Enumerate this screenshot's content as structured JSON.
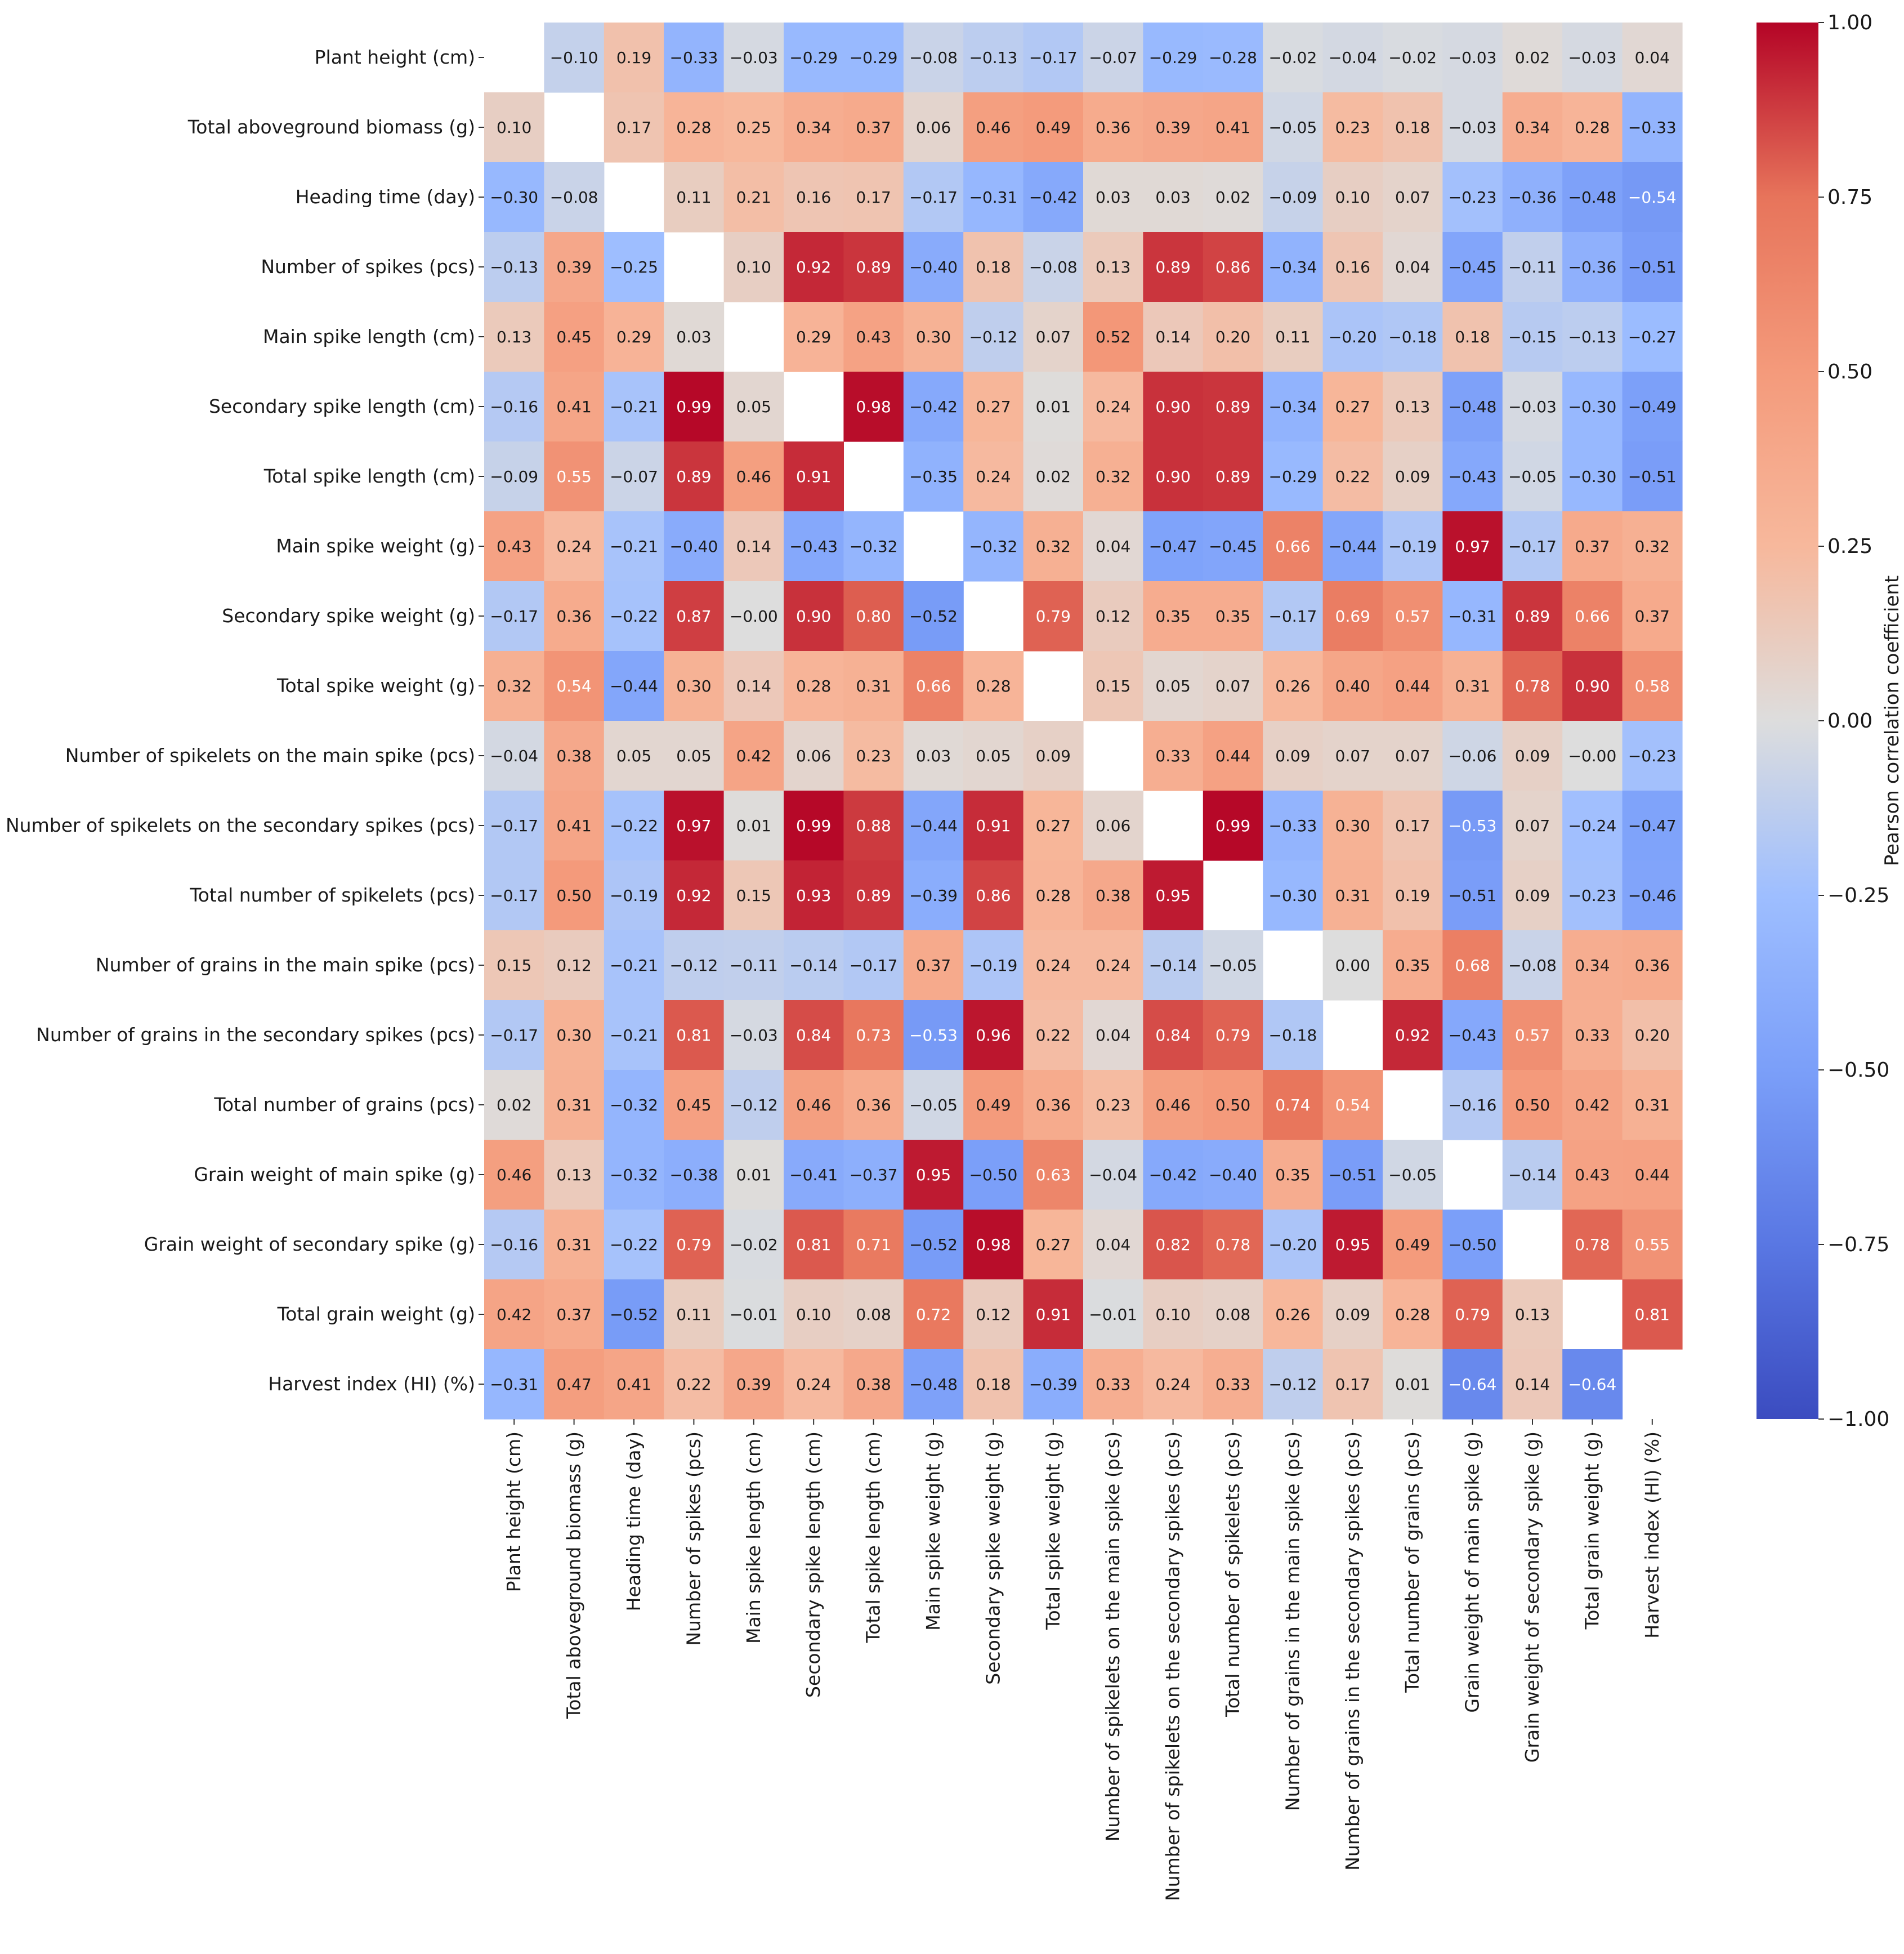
{
  "chart_data": {
    "type": "heatmap",
    "title": "",
    "colorbar": {
      "label": "Pearson correlation coefficient",
      "range": [
        -1.0,
        1.0
      ],
      "ticks": [
        "−1.00",
        "−0.75",
        "−0.50",
        "−0.25",
        "0.00",
        "0.25",
        "0.50",
        "0.75",
        "1.00"
      ],
      "tick_values": [
        -1.0,
        -0.75,
        -0.5,
        -0.25,
        0.0,
        0.25,
        0.5,
        0.75,
        1.0
      ],
      "colormap": "coolwarm",
      "colors": {
        "low": "#3b4cc0",
        "mid": "#dddddd",
        "high": "#b40426"
      }
    },
    "diagonal": "blank",
    "variables": [
      "Plant height (cm)",
      "Total aboveground biomass (g)",
      "Heading time (day)",
      "Number of spikes (pcs)",
      "Main spike length (cm)",
      "Secondary spike length (cm)",
      "Total spike length (cm)",
      "Main spike weight (g)",
      "Secondary spike weight (g)",
      "Total spike weight (g)",
      "Number of spikelets on the main spike (pcs)",
      "Number of spikelets on the secondary spikes (pcs)",
      "Total number of spikelets (pcs)",
      "Number of grains in the main spike (pcs)",
      "Number of grains in the secondary spikes (pcs)",
      "Total number of grains (pcs)",
      "Grain weight of main spike (g)",
      "Grain weight of secondary spike (g)",
      "Total grain weight (g)",
      "Harvest index (HI) (%)"
    ],
    "matrix": [
      [
        null,
        -0.1,
        0.19,
        -0.33,
        -0.03,
        -0.29,
        -0.29,
        -0.08,
        -0.13,
        -0.17,
        -0.07,
        -0.29,
        -0.28,
        -0.02,
        -0.04,
        -0.02,
        -0.03,
        0.02,
        -0.03,
        0.04
      ],
      [
        0.1,
        null,
        0.17,
        0.28,
        0.25,
        0.34,
        0.37,
        0.06,
        0.46,
        0.49,
        0.36,
        0.39,
        0.41,
        -0.05,
        0.23,
        0.18,
        -0.03,
        0.34,
        0.28,
        -0.33
      ],
      [
        -0.3,
        -0.08,
        null,
        0.11,
        0.21,
        0.16,
        0.17,
        -0.17,
        -0.31,
        -0.42,
        0.03,
        0.03,
        0.02,
        -0.09,
        0.1,
        0.07,
        -0.23,
        -0.36,
        -0.48,
        -0.54
      ],
      [
        -0.13,
        0.39,
        -0.25,
        null,
        0.1,
        0.92,
        0.89,
        -0.4,
        0.18,
        -0.08,
        0.13,
        0.89,
        0.86,
        -0.34,
        0.16,
        0.04,
        -0.45,
        -0.11,
        -0.36,
        -0.51
      ],
      [
        0.13,
        0.45,
        0.29,
        0.03,
        null,
        0.29,
        0.43,
        0.3,
        -0.12,
        0.07,
        0.52,
        0.14,
        0.2,
        0.11,
        -0.2,
        -0.18,
        0.18,
        -0.15,
        -0.13,
        -0.27
      ],
      [
        -0.16,
        0.41,
        -0.21,
        0.99,
        0.05,
        null,
        0.98,
        -0.42,
        0.27,
        0.01,
        0.24,
        0.9,
        0.89,
        -0.34,
        0.27,
        0.13,
        -0.48,
        -0.03,
        -0.3,
        -0.49
      ],
      [
        -0.09,
        0.55,
        -0.07,
        0.89,
        0.46,
        0.91,
        null,
        -0.35,
        0.24,
        0.02,
        0.32,
        0.9,
        0.89,
        -0.29,
        0.22,
        0.09,
        -0.43,
        -0.05,
        -0.3,
        -0.51
      ],
      [
        0.43,
        0.24,
        -0.21,
        -0.4,
        0.14,
        -0.43,
        -0.32,
        null,
        -0.32,
        0.32,
        0.04,
        -0.47,
        -0.45,
        0.66,
        -0.44,
        -0.19,
        0.97,
        -0.17,
        0.37,
        0.32
      ],
      [
        -0.17,
        0.36,
        -0.22,
        0.87,
        -0.0,
        0.9,
        0.8,
        -0.52,
        null,
        0.79,
        0.12,
        0.35,
        0.35,
        -0.17,
        0.69,
        0.57,
        -0.31,
        0.89,
        0.66,
        0.37
      ],
      [
        0.32,
        0.54,
        -0.44,
        0.3,
        0.14,
        0.28,
        0.31,
        0.66,
        0.28,
        null,
        0.15,
        0.05,
        0.07,
        0.26,
        0.4,
        0.44,
        0.31,
        0.78,
        0.9,
        0.58
      ],
      [
        -0.04,
        0.38,
        0.05,
        0.05,
        0.42,
        0.06,
        0.23,
        0.03,
        0.05,
        0.09,
        null,
        0.33,
        0.44,
        0.09,
        0.07,
        0.07,
        -0.06,
        0.09,
        -0.0,
        -0.23
      ],
      [
        -0.17,
        0.41,
        -0.22,
        0.97,
        0.01,
        0.99,
        0.88,
        -0.44,
        0.91,
        0.27,
        0.06,
        null,
        0.99,
        -0.33,
        0.3,
        0.17,
        -0.53,
        0.07,
        -0.24,
        -0.47
      ],
      [
        -0.17,
        0.5,
        -0.19,
        0.92,
        0.15,
        0.93,
        0.89,
        -0.39,
        0.86,
        0.28,
        0.38,
        0.95,
        null,
        -0.3,
        0.31,
        0.19,
        -0.51,
        0.09,
        -0.23,
        -0.46
      ],
      [
        0.15,
        0.12,
        -0.21,
        -0.12,
        -0.11,
        -0.14,
        -0.17,
        0.37,
        -0.19,
        0.24,
        0.24,
        -0.14,
        -0.05,
        null,
        0.0,
        0.35,
        0.68,
        -0.08,
        0.34,
        0.36
      ],
      [
        -0.17,
        0.3,
        -0.21,
        0.81,
        -0.03,
        0.84,
        0.73,
        -0.53,
        0.96,
        0.22,
        0.04,
        0.84,
        0.79,
        -0.18,
        null,
        0.92,
        -0.43,
        0.57,
        0.33,
        0.2
      ],
      [
        0.02,
        0.31,
        -0.32,
        0.45,
        -0.12,
        0.46,
        0.36,
        -0.05,
        0.49,
        0.36,
        0.23,
        0.46,
        0.5,
        0.74,
        0.54,
        null,
        -0.16,
        0.5,
        0.42,
        0.31
      ],
      [
        0.46,
        0.13,
        -0.32,
        -0.38,
        0.01,
        -0.41,
        -0.37,
        0.95,
        -0.5,
        0.63,
        -0.04,
        -0.42,
        -0.4,
        0.35,
        -0.51,
        -0.05,
        null,
        -0.14,
        0.43,
        0.44
      ],
      [
        -0.16,
        0.31,
        -0.22,
        0.79,
        -0.02,
        0.81,
        0.71,
        -0.52,
        0.98,
        0.27,
        0.04,
        0.82,
        0.78,
        -0.2,
        0.95,
        0.49,
        -0.5,
        null,
        0.78,
        0.55
      ],
      [
        0.42,
        0.37,
        -0.52,
        0.11,
        -0.01,
        0.1,
        0.08,
        0.72,
        0.12,
        0.91,
        -0.01,
        0.1,
        0.08,
        0.26,
        0.09,
        0.28,
        0.79,
        0.13,
        null,
        0.81
      ],
      [
        -0.31,
        0.47,
        0.41,
        0.22,
        0.39,
        0.24,
        0.38,
        -0.48,
        0.18,
        -0.39,
        0.33,
        0.24,
        0.33,
        -0.12,
        0.17,
        0.01,
        -0.64,
        0.14,
        -0.64,
        null
      ]
    ]
  }
}
